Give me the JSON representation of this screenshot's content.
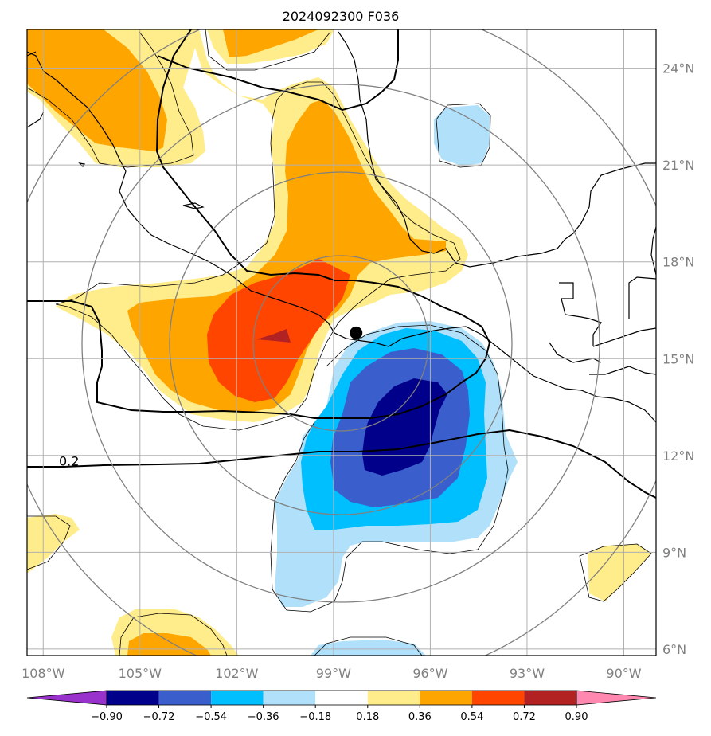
{
  "chart_data": {
    "type": "heatmap",
    "title": "2024092300 F036",
    "projection": "lat-lon map with range rings around storm center",
    "lon_range": [
      -108.5,
      -89.0
    ],
    "lat_range": [
      5.8,
      25.2
    ],
    "lon_ticks": [
      {
        "value": -108,
        "label": "108°W"
      },
      {
        "value": -105,
        "label": "105°W"
      },
      {
        "value": -102,
        "label": "102°W"
      },
      {
        "value": -99,
        "label": "99°W"
      },
      {
        "value": -96,
        "label": "96°W"
      },
      {
        "value": -93,
        "label": "93°W"
      },
      {
        "value": -90,
        "label": "90°W"
      }
    ],
    "lat_ticks": [
      {
        "value": 6,
        "label": "6°N"
      },
      {
        "value": 9,
        "label": "9°N"
      },
      {
        "value": 12,
        "label": "12°N"
      },
      {
        "value": 15,
        "label": "15°N"
      },
      {
        "value": 18,
        "label": "18°N"
      },
      {
        "value": 21,
        "label": "21°N"
      },
      {
        "value": 24,
        "label": "24°N"
      }
    ],
    "grid": true,
    "storm_center": {
      "lon": -98.3,
      "lat": 15.8
    },
    "contour_label": {
      "text": "0.2",
      "lon": -107.2,
      "lat": 11.8
    },
    "colorbar": {
      "position": "bottom",
      "levels": [
        -0.9,
        -0.72,
        -0.54,
        -0.36,
        -0.18,
        0.18,
        0.36,
        0.54,
        0.72,
        0.9
      ],
      "tick_labels": [
        "−0.90",
        "−0.72",
        "−0.54",
        "−0.36",
        "−0.18",
        "0.18",
        "0.36",
        "0.54",
        "0.72",
        "0.90"
      ],
      "colors": [
        "#9932cc",
        "#00008b",
        "#3a5fcd",
        "#00bfff",
        "#b0e0fa",
        "#ffffff",
        "#ffec8b",
        "#ffa500",
        "#ff4500",
        "#b22222",
        "#ff88b0"
      ]
    },
    "colors": {
      "light_yellow": "#ffec8b",
      "orange": "#ffa500",
      "red_orange": "#ff4500",
      "dark_red": "#b22222",
      "light_blue": "#b0e0fa",
      "deep_sky_blue": "#00bfff",
      "royal_blue": "#3a5fcd",
      "navy": "#00008b"
    }
  }
}
